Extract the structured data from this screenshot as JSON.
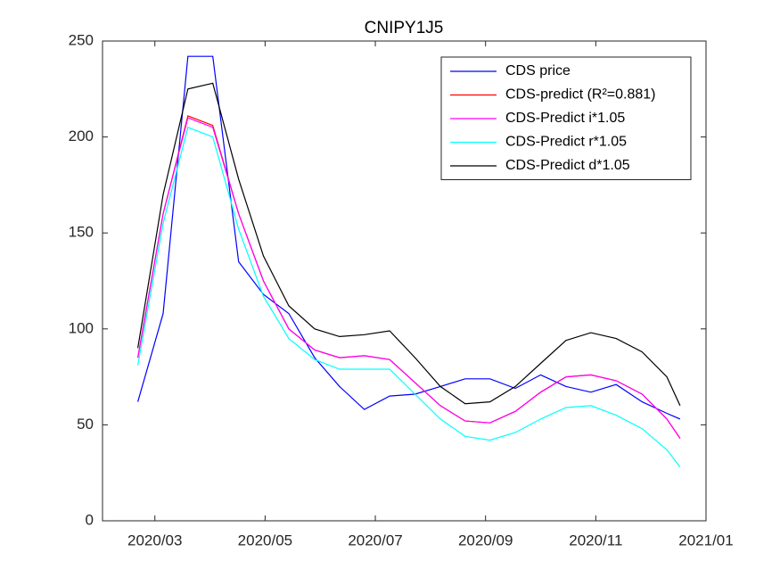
{
  "chart_data": {
    "type": "line",
    "title": "CNIPY1J5",
    "x": [
      2.69,
      3.15,
      3.6,
      4.05,
      4.52,
      4.97,
      5.43,
      5.9,
      6.35,
      6.8,
      7.26,
      7.72,
      8.18,
      8.63,
      9.08,
      9.54,
      10.0,
      10.46,
      10.91,
      11.37,
      11.84,
      12.29,
      12.53
    ],
    "xlim": [
      2.05,
      13
    ],
    "xticks": [
      {
        "value": 3,
        "label": "2020/03"
      },
      {
        "value": 5,
        "label": "2020/05"
      },
      {
        "value": 7,
        "label": "2020/07"
      },
      {
        "value": 9,
        "label": "2020/09"
      },
      {
        "value": 11,
        "label": "2020/11"
      },
      {
        "value": 13,
        "label": "2021/01"
      }
    ],
    "ylim": [
      0,
      250
    ],
    "yticks": [
      0,
      50,
      100,
      150,
      200,
      250
    ],
    "legend": "top-right",
    "series": [
      {
        "name": "CDS price",
        "color": "#0000ff",
        "values": [
          62,
          108,
          242,
          242,
          135,
          118,
          108,
          85,
          70,
          58,
          65,
          66,
          70,
          74,
          74,
          69,
          76,
          70,
          67,
          71,
          62,
          56,
          53
        ]
      },
      {
        "name": "CDS-predict (R²=0.881)",
        "color": "#ff0000",
        "values": [
          85,
          160,
          211,
          206,
          160,
          125,
          100,
          89,
          85,
          86,
          84,
          72,
          60,
          52,
          51,
          57,
          67,
          75,
          76,
          73,
          66,
          53,
          43
        ]
      },
      {
        "name": "CDS-Predict i*1.05",
        "color": "#ff00ff",
        "values": [
          85,
          160,
          210,
          205,
          160,
          125,
          100,
          89,
          85,
          86,
          84,
          72,
          60,
          52,
          51,
          57,
          67,
          75,
          76,
          73,
          66,
          53,
          43
        ]
      },
      {
        "name": "CDS-Predict r*1.05",
        "color": "#00ffff",
        "values": [
          81,
          155,
          205,
          200,
          152,
          117,
          95,
          84,
          79,
          79,
          79,
          66,
          53,
          44,
          42,
          46,
          53,
          59,
          60,
          55,
          48,
          37,
          28
        ]
      },
      {
        "name": "CDS-Predict d*1.05",
        "color": "#000000",
        "values": [
          90,
          170,
          225,
          228,
          178,
          138,
          112,
          100,
          96,
          97,
          99,
          85,
          70,
          61,
          62,
          70,
          82,
          94,
          98,
          95,
          88,
          75,
          60
        ]
      }
    ]
  }
}
